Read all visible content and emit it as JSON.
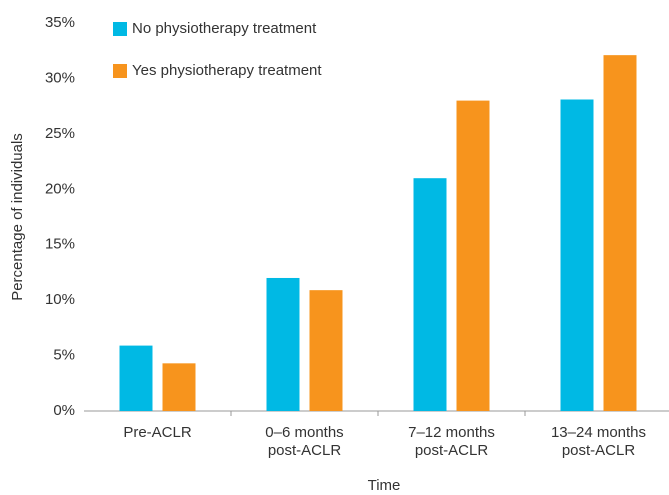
{
  "chart_data": {
    "type": "bar",
    "x_label": "Time",
    "y_label": "Percentage of individuals",
    "categories": [
      "Pre-ACLR",
      "0–6 months\npost-ACLR",
      "7–12 months\npost-ACLR",
      "13–24 months\npost-ACLR"
    ],
    "series": [
      {
        "name": "No physiotherapy treatment",
        "color": "#00b9e4",
        "values": [
          5.9,
          12.0,
          21.0,
          28.1
        ]
      },
      {
        "name": "Yes physiotherapy treatment",
        "color": "#f7941d",
        "values": [
          4.3,
          10.9,
          28.0,
          32.1
        ]
      }
    ],
    "ylim": [
      0,
      35
    ],
    "yticks": [
      {
        "value": 0,
        "label": "0%"
      },
      {
        "value": 5,
        "label": "5%"
      },
      {
        "value": 10,
        "label": "10%"
      },
      {
        "value": 15,
        "label": "15%"
      },
      {
        "value": 20,
        "label": "20%"
      },
      {
        "value": 25,
        "label": "25%"
      },
      {
        "value": 30,
        "label": "30%"
      },
      {
        "value": 35,
        "label": "35%"
      }
    ],
    "legend": "top-left"
  }
}
